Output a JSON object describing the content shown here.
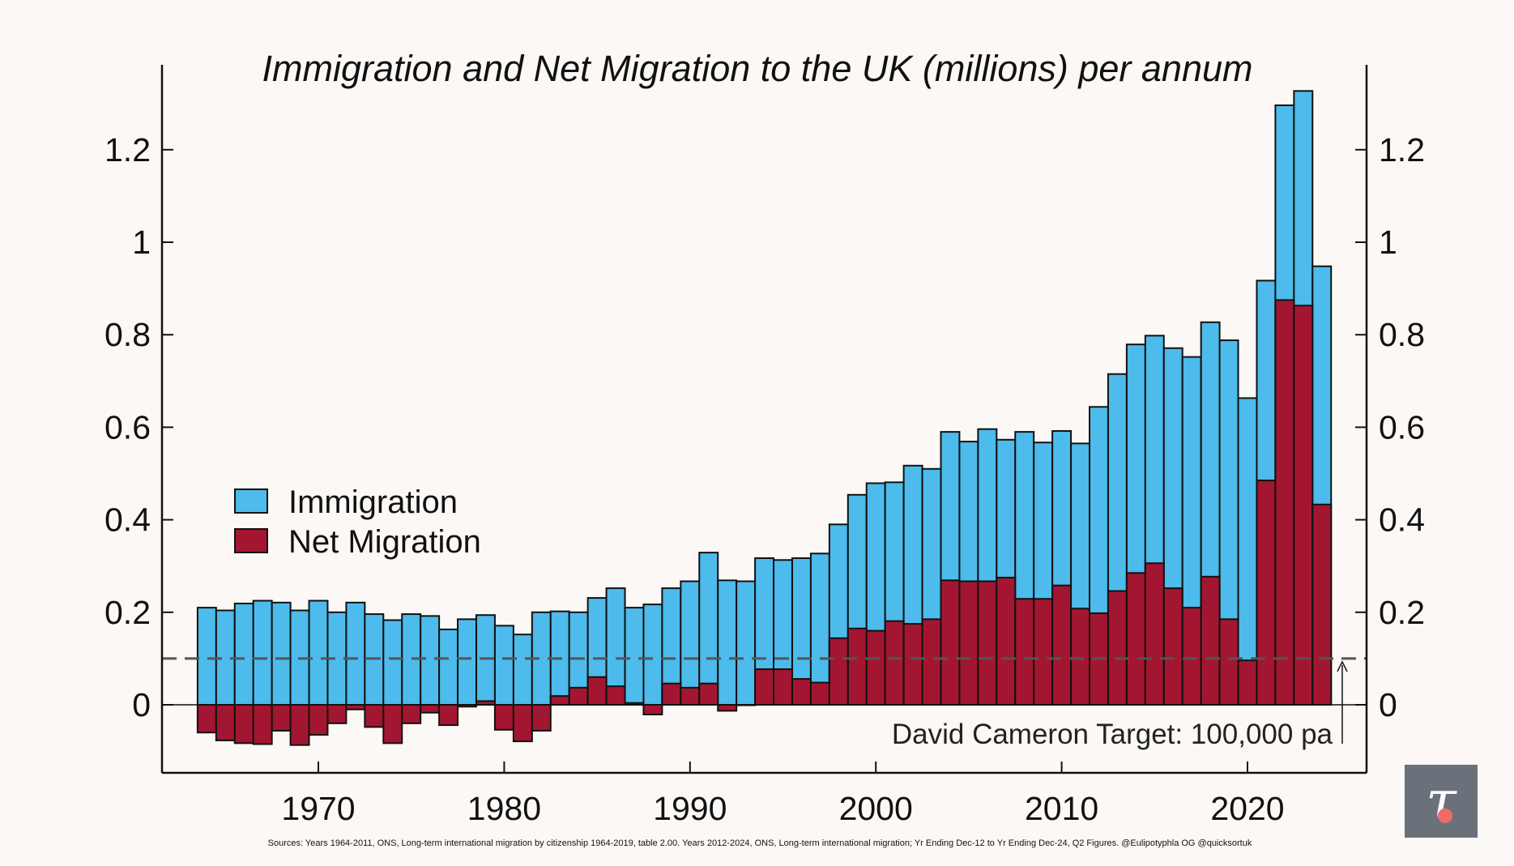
{
  "chart_data": {
    "type": "bar",
    "title": "Immigration and Net Migration to the UK (millions) per annum",
    "xlabel": "",
    "ylabel": "",
    "ylim": [
      -0.15,
      1.38
    ],
    "xlim": [
      1961.5,
      2026.5
    ],
    "x_ticks": [
      1970,
      1980,
      1990,
      2000,
      2010,
      2020
    ],
    "y_ticks": [
      0,
      0.2,
      0.4,
      0.6,
      0.8,
      1,
      1.2
    ],
    "y_tick_labels": [
      "0",
      "0.2",
      "0.4",
      "0.6",
      "0.8",
      "1",
      "1.2"
    ],
    "legend_position": "center-left",
    "x": [
      1964,
      1965,
      1966,
      1967,
      1968,
      1969,
      1970,
      1971,
      1972,
      1973,
      1974,
      1975,
      1976,
      1977,
      1978,
      1979,
      1980,
      1981,
      1982,
      1983,
      1984,
      1985,
      1986,
      1987,
      1988,
      1989,
      1990,
      1991,
      1992,
      1993,
      1994,
      1995,
      1996,
      1997,
      1998,
      1999,
      2000,
      2001,
      2002,
      2003,
      2004,
      2005,
      2006,
      2007,
      2008,
      2009,
      2010,
      2011,
      2012,
      2013,
      2014,
      2015,
      2016,
      2017,
      2018,
      2019,
      2020,
      2021,
      2022,
      2023,
      2024
    ],
    "series": [
      {
        "name": "Immigration",
        "color": "#4dbbeb",
        "values": [
          0.21,
          0.204,
          0.219,
          0.225,
          0.221,
          0.204,
          0.225,
          0.2,
          0.221,
          0.196,
          0.183,
          0.196,
          0.192,
          0.163,
          0.185,
          0.194,
          0.171,
          0.152,
          0.2,
          0.202,
          0.2,
          0.231,
          0.252,
          0.21,
          0.217,
          0.252,
          0.267,
          0.329,
          0.269,
          0.267,
          0.317,
          0.313,
          0.317,
          0.327,
          0.39,
          0.454,
          0.479,
          0.481,
          0.517,
          0.51,
          0.59,
          0.569,
          0.596,
          0.573,
          0.59,
          0.567,
          0.592,
          0.565,
          0.644,
          0.715,
          0.779,
          0.798,
          0.771,
          0.752,
          0.827,
          0.788,
          0.663,
          0.917,
          1.296,
          1.327,
          0.948
        ]
      },
      {
        "name": "Net Migration",
        "color": "#a31631",
        "values": [
          -0.06,
          -0.077,
          -0.083,
          -0.085,
          -0.056,
          -0.087,
          -0.065,
          -0.04,
          -0.01,
          -0.048,
          -0.083,
          -0.04,
          -0.017,
          -0.044,
          -0.004,
          0.008,
          -0.054,
          -0.079,
          -0.056,
          0.019,
          0.037,
          0.06,
          0.04,
          0.004,
          -0.021,
          0.046,
          0.037,
          0.046,
          -0.013,
          -0.001,
          0.077,
          0.077,
          0.056,
          0.048,
          0.144,
          0.165,
          0.16,
          0.181,
          0.175,
          0.185,
          0.269,
          0.267,
          0.267,
          0.275,
          0.229,
          0.229,
          0.258,
          0.208,
          0.198,
          0.246,
          0.285,
          0.306,
          0.252,
          0.21,
          0.277,
          0.185,
          0.096,
          0.485,
          0.875,
          0.863,
          0.433
        ]
      }
    ],
    "reference_line": {
      "value": 0.1,
      "label": "David Cameron Target: 100,000 pa",
      "style": "dashed",
      "color": "#555555"
    },
    "source": "Sources: Years 1964-2011, ONS, Long-term international migration by citizenship 1964-2019, table 2.00. Years 2012-2024, ONS, Long-term international migration; Yr Ending Dec-12 to Yr Ending Dec-24, Q2 Figures. @Eulipotyphla OG @quicksortuk",
    "logo_text": "τ"
  }
}
